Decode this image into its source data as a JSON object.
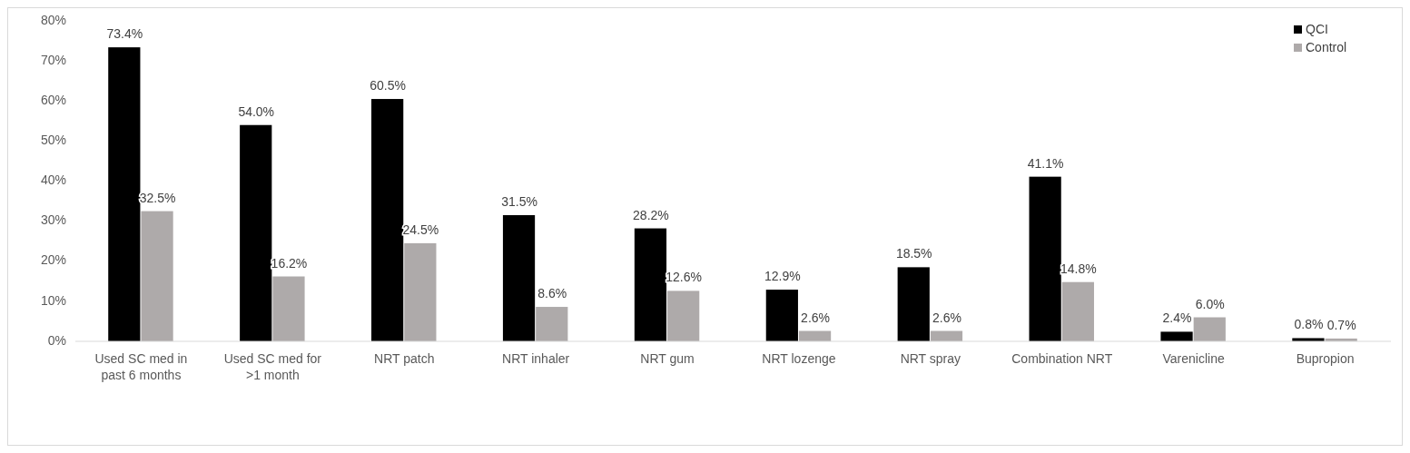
{
  "chart_data": {
    "type": "bar",
    "categories": [
      "Used SC med in past 6 months",
      "Used SC med for >1 month",
      "NRT patch",
      "NRT inhaler",
      "NRT gum",
      "NRT lozenge",
      "NRT spray",
      "Combination NRT",
      "Varenicline",
      "Bupropion"
    ],
    "series": [
      {
        "name": "QCI",
        "color": "#000000",
        "values": [
          73.4,
          54.0,
          60.5,
          31.5,
          28.2,
          12.9,
          18.5,
          41.1,
          2.4,
          0.8
        ],
        "value_labels": [
          "73.4%",
          "54.0%",
          "60.5%",
          "31.5%",
          "28.2%",
          "12.9%",
          "18.5%",
          "41.1%",
          "2.4%",
          "0.8%"
        ]
      },
      {
        "name": "Control",
        "color": "#aeaaaa",
        "values": [
          32.5,
          16.2,
          24.5,
          8.6,
          12.6,
          2.6,
          2.6,
          14.8,
          6.0,
          0.7
        ],
        "value_labels": [
          "32.5%",
          "16.2%",
          "24.5%",
          "8.6%",
          "12.6%",
          "2.6%",
          "2.6%",
          "14.8%",
          "6.0%",
          "0.7%"
        ]
      }
    ],
    "ylim": [
      0,
      80
    ],
    "yticks": [
      {
        "value": 0,
        "label": "0%"
      },
      {
        "value": 10,
        "label": "10%"
      },
      {
        "value": 20,
        "label": "20%"
      },
      {
        "value": 30,
        "label": "30%"
      },
      {
        "value": 40,
        "label": "40%"
      },
      {
        "value": 50,
        "label": "50%"
      },
      {
        "value": 60,
        "label": "60%"
      },
      {
        "value": 70,
        "label": "70%"
      },
      {
        "value": 80,
        "label": "80%"
      }
    ],
    "grid": false,
    "legend": "top right"
  }
}
